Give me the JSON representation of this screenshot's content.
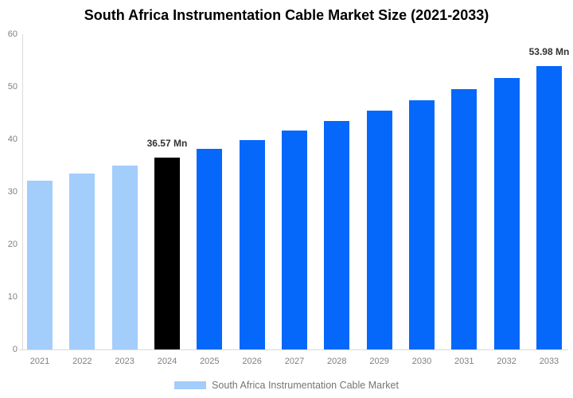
{
  "chart_data": {
    "type": "bar",
    "title": "South Africa Instrumentation Cable Market Size (2021-2033)",
    "categories": [
      "2021",
      "2022",
      "2023",
      "2024",
      "2025",
      "2026",
      "2027",
      "2028",
      "2029",
      "2030",
      "2031",
      "2032",
      "2033"
    ],
    "values": [
      32.1,
      33.5,
      35.0,
      36.57,
      38.2,
      39.9,
      41.6,
      43.5,
      45.4,
      47.4,
      49.5,
      51.7,
      53.98
    ],
    "unit": "Mn",
    "xlabel": "",
    "ylabel": "",
    "ylim": [
      0,
      60
    ],
    "yticks": [
      0,
      10,
      20,
      30,
      40,
      50,
      60
    ],
    "grid": false,
    "legend_position": "bottom",
    "legend_label": "South Africa Instrumentation Cable Market",
    "annotations": [
      {
        "category": "2024",
        "text": "36.57 Mn"
      },
      {
        "category": "2033",
        "text": "53.98 Mn"
      }
    ],
    "bar_segments": [
      "historical",
      "historical",
      "historical",
      "base_year",
      "forecast",
      "forecast",
      "forecast",
      "forecast",
      "forecast",
      "forecast",
      "forecast",
      "forecast",
      "forecast"
    ],
    "colors": {
      "historical_bar": "#A3CDFB",
      "base_year_bar": "#000000",
      "forecast_bar": "#0667FB",
      "axis_text": "#7F7F7F",
      "axis_line": "#DBDBDB",
      "annotation_text": "#333333",
      "legend_text": "#757575",
      "title_text": "#000000"
    }
  }
}
